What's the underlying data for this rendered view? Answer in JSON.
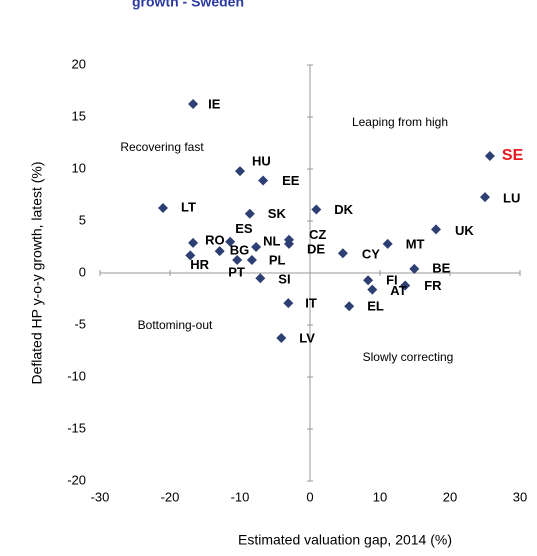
{
  "chart_data": {
    "type": "scatter",
    "title": "growth - Sweden",
    "x_label": "Estimated valuation gap, 2014 (%)",
    "y_label": "Deflated HP y-o-y growth, latest (%)",
    "xlim": [
      -30,
      30
    ],
    "xticks": [
      -30,
      -20,
      -10,
      0,
      10,
      20,
      30
    ],
    "ylim": [
      -20,
      20
    ],
    "yticks": [
      -20,
      -15,
      -10,
      -5,
      0,
      5,
      10,
      15,
      20
    ],
    "color": "#2e3f73",
    "highlight": "SE",
    "highlight_color": "#e8191f",
    "series": [
      {
        "labels": [
          "IE",
          "HU",
          "EE",
          "LT",
          "SK",
          "DK",
          "RO",
          "ES",
          "BG",
          "NL",
          "CZ",
          "DE",
          "HR",
          "PT",
          "PL",
          "SI",
          "CY",
          "MT",
          "UK",
          "LU",
          "SE",
          "BE",
          "FI",
          "FR",
          "AT",
          "EL",
          "IT",
          "LV"
        ],
        "x": [
          -16.7,
          -10,
          -6.7,
          -21,
          -8.6,
          0.9,
          -16.7,
          -11.4,
          -12.9,
          -7.7,
          -3,
          -3,
          -17.1,
          -10.4,
          -8.3,
          -7.1,
          4.7,
          11.1,
          18,
          25,
          25.7,
          14.9,
          8.3,
          13.6,
          8.9,
          5.6,
          -3.1,
          -4.1
        ],
        "values": [
          16.25,
          9.8,
          8.9,
          6.25,
          5.7,
          6.1,
          2.9,
          3.0,
          2.1,
          2.5,
          3.2,
          2.8,
          1.7,
          1.25,
          1.25,
          -0.5,
          1.9,
          2.8,
          4.2,
          7.3,
          11.25,
          0.4,
          -0.7,
          -1.2,
          -1.6,
          -3.2,
          -2.9,
          -6.25
        ]
      }
    ],
    "annotations": [
      "Leaping from high",
      "Recovering fast",
      "Bottoming-out",
      "Slowly correcting"
    ]
  }
}
